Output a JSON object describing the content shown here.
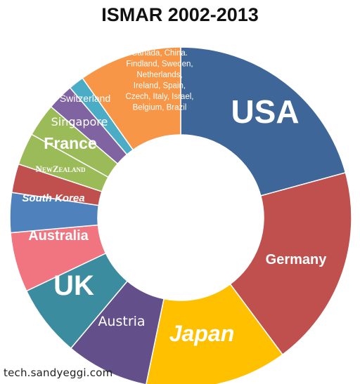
{
  "title": "ISMAR 2002-2013",
  "credit": "tech.sandyeggi.com",
  "chart_data": {
    "type": "pie",
    "variant": "donut",
    "title": "ISMAR 2002-2013",
    "start": "12 o'clock, clockwise",
    "slices": [
      {
        "label": "USA",
        "value": 19.8,
        "color": "#3F6698"
      },
      {
        "label": "Germany",
        "value": 18.2,
        "color": "#C0504D"
      },
      {
        "label": "Japan",
        "value": 12.8,
        "color": "#FFC000"
      },
      {
        "label": "Austria",
        "value": 7.5,
        "color": "#63508A"
      },
      {
        "label": "UK",
        "value": 6.5,
        "color": "#3C8CA0"
      },
      {
        "label": "Australia",
        "value": 5.4,
        "color": "#F07580"
      },
      {
        "label": "South Korea",
        "value": 3.6,
        "color": "#4F81BD"
      },
      {
        "label": "NewZealand",
        "value": 2.6,
        "color": "#C0504D"
      },
      {
        "label": "France",
        "value": 2.9,
        "color": "#9BBB59"
      },
      {
        "label": "Singapore",
        "value": 3.0,
        "color": "#9BBB59"
      },
      {
        "label": "Switzerland",
        "value": 2.4,
        "color": "#8064A2"
      },
      {
        "label": "",
        "value": 1.4,
        "color": "#4BACC6"
      },
      {
        "label": "Canada, China. Findland, Sweden, Netherlands, Ireland, Spain, Czech, Italy, Israel, Belgium, Brazil",
        "value": 9.3,
        "color": "#F79646"
      }
    ]
  }
}
